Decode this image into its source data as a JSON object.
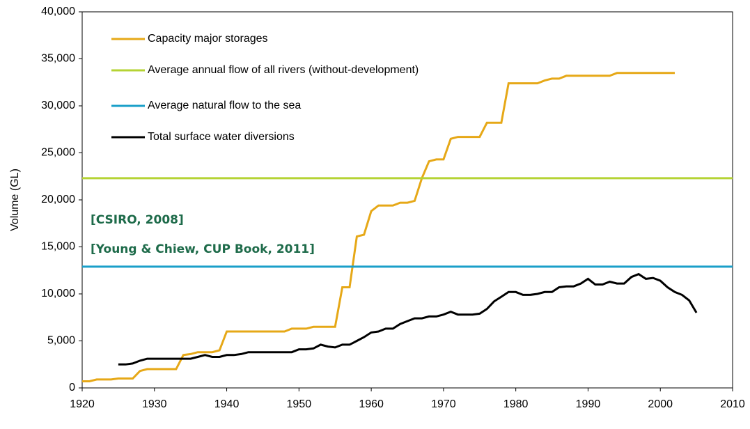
{
  "chart_data": {
    "type": "line",
    "ylabel": "Volume (GL)",
    "annotations": [
      "[CSIRO, 2008]",
      "[Young & Chiew, CUP Book, 2011]"
    ],
    "xlim": [
      1920,
      2010
    ],
    "xticks": [
      1920,
      1930,
      1940,
      1950,
      1960,
      1970,
      1980,
      1990,
      2000,
      2010
    ],
    "ylim": [
      0,
      40000
    ],
    "yticks": [
      0,
      {
        "value": 5000,
        "label": "5,000"
      },
      {
        "value": 10000,
        "label": "10,000"
      },
      {
        "value": 15000,
        "label": "15,000"
      },
      {
        "value": 20000,
        "label": "20,000"
      },
      {
        "value": 25000,
        "label": "25,000"
      },
      {
        "value": 30000,
        "label": "30,000"
      },
      {
        "value": 35000,
        "label": "35,000"
      },
      {
        "value": 40000,
        "label": "40,000"
      }
    ],
    "grid": false,
    "legend": "upper left",
    "series": [
      {
        "name": "Capacity major storages",
        "color": "#e6a817",
        "x": [
          1920,
          1921,
          1922,
          1923,
          1924,
          1925,
          1926,
          1927,
          1928,
          1929,
          1930,
          1931,
          1932,
          1933,
          1934,
          1935,
          1936,
          1937,
          1938,
          1939,
          1940,
          1941,
          1942,
          1943,
          1944,
          1945,
          1946,
          1947,
          1948,
          1949,
          1950,
          1951,
          1952,
          1953,
          1954,
          1955,
          1956,
          1957,
          1958,
          1959,
          1960,
          1961,
          1962,
          1963,
          1964,
          1965,
          1966,
          1967,
          1968,
          1969,
          1970,
          1971,
          1972,
          1973,
          1974,
          1975,
          1976,
          1977,
          1978,
          1979,
          1980,
          1981,
          1982,
          1983,
          1984,
          1985,
          1986,
          1987,
          1988,
          1989,
          1990,
          1991,
          1992,
          1993,
          1994,
          1995,
          1996,
          1997,
          1998,
          1999,
          2000,
          2001,
          2002
        ],
        "values": [
          700,
          700,
          900,
          900,
          900,
          1000,
          1000,
          1000,
          1800,
          2000,
          2000,
          2000,
          2000,
          2000,
          3500,
          3600,
          3800,
          3800,
          3800,
          4000,
          6000,
          6000,
          6000,
          6000,
          6000,
          6000,
          6000,
          6000,
          6000,
          6300,
          6300,
          6300,
          6500,
          6500,
          6500,
          6500,
          10700,
          10700,
          16100,
          16300,
          18800,
          19400,
          19400,
          19400,
          19700,
          19700,
          19900,
          22300,
          24100,
          24300,
          24300,
          26500,
          26700,
          26700,
          26700,
          26700,
          28200,
          28200,
          28200,
          32400,
          32400,
          32400,
          32400,
          32400,
          32700,
          32900,
          32900,
          33200,
          33200,
          33200,
          33200,
          33200,
          33200,
          33200,
          33500,
          33500,
          33500,
          33500,
          33500,
          33500,
          33500,
          33500,
          33500
        ]
      },
      {
        "name": "Average annual flow of all rivers (without-development)",
        "color": "#b5d334",
        "x": [
          1920,
          2010
        ],
        "values": [
          22300,
          22300
        ]
      },
      {
        "name": "Average natural flow to the sea",
        "color": "#1a9fc9",
        "x": [
          1920,
          2010
        ],
        "values": [
          12900,
          12900
        ]
      },
      {
        "name": "Total surface water diversions",
        "color": "#000000",
        "x": [
          1925,
          1926,
          1927,
          1928,
          1929,
          1930,
          1931,
          1932,
          1933,
          1934,
          1935,
          1936,
          1937,
          1938,
          1939,
          1940,
          1941,
          1942,
          1943,
          1944,
          1945,
          1946,
          1947,
          1948,
          1949,
          1950,
          1951,
          1952,
          1953,
          1954,
          1955,
          1956,
          1957,
          1958,
          1959,
          1960,
          1961,
          1962,
          1963,
          1964,
          1965,
          1966,
          1967,
          1968,
          1969,
          1970,
          1971,
          1972,
          1973,
          1974,
          1975,
          1976,
          1977,
          1978,
          1979,
          1980,
          1981,
          1982,
          1983,
          1984,
          1985,
          1986,
          1987,
          1988,
          1989,
          1990,
          1991,
          1992,
          1993,
          1994,
          1995,
          1996,
          1997,
          1998,
          1999,
          2000,
          2001,
          2002,
          2003,
          2004,
          2005
        ],
        "values": [
          2500,
          2500,
          2600,
          2900,
          3100,
          3100,
          3100,
          3100,
          3100,
          3100,
          3100,
          3300,
          3500,
          3300,
          3300,
          3500,
          3500,
          3600,
          3800,
          3800,
          3800,
          3800,
          3800,
          3800,
          3800,
          4100,
          4100,
          4200,
          4600,
          4400,
          4300,
          4600,
          4600,
          5000,
          5400,
          5900,
          6000,
          6300,
          6300,
          6800,
          7100,
          7400,
          7400,
          7600,
          7600,
          7800,
          8100,
          7800,
          7800,
          7800,
          7900,
          8400,
          9200,
          9700,
          10200,
          10200,
          9900,
          9900,
          10000,
          10200,
          10200,
          10700,
          10800,
          10800,
          11100,
          11600,
          11000,
          11000,
          11300,
          11100,
          11100,
          11800,
          12100,
          11600,
          11700,
          11400,
          10700,
          10200,
          9900,
          9300,
          8000
        ]
      }
    ]
  }
}
